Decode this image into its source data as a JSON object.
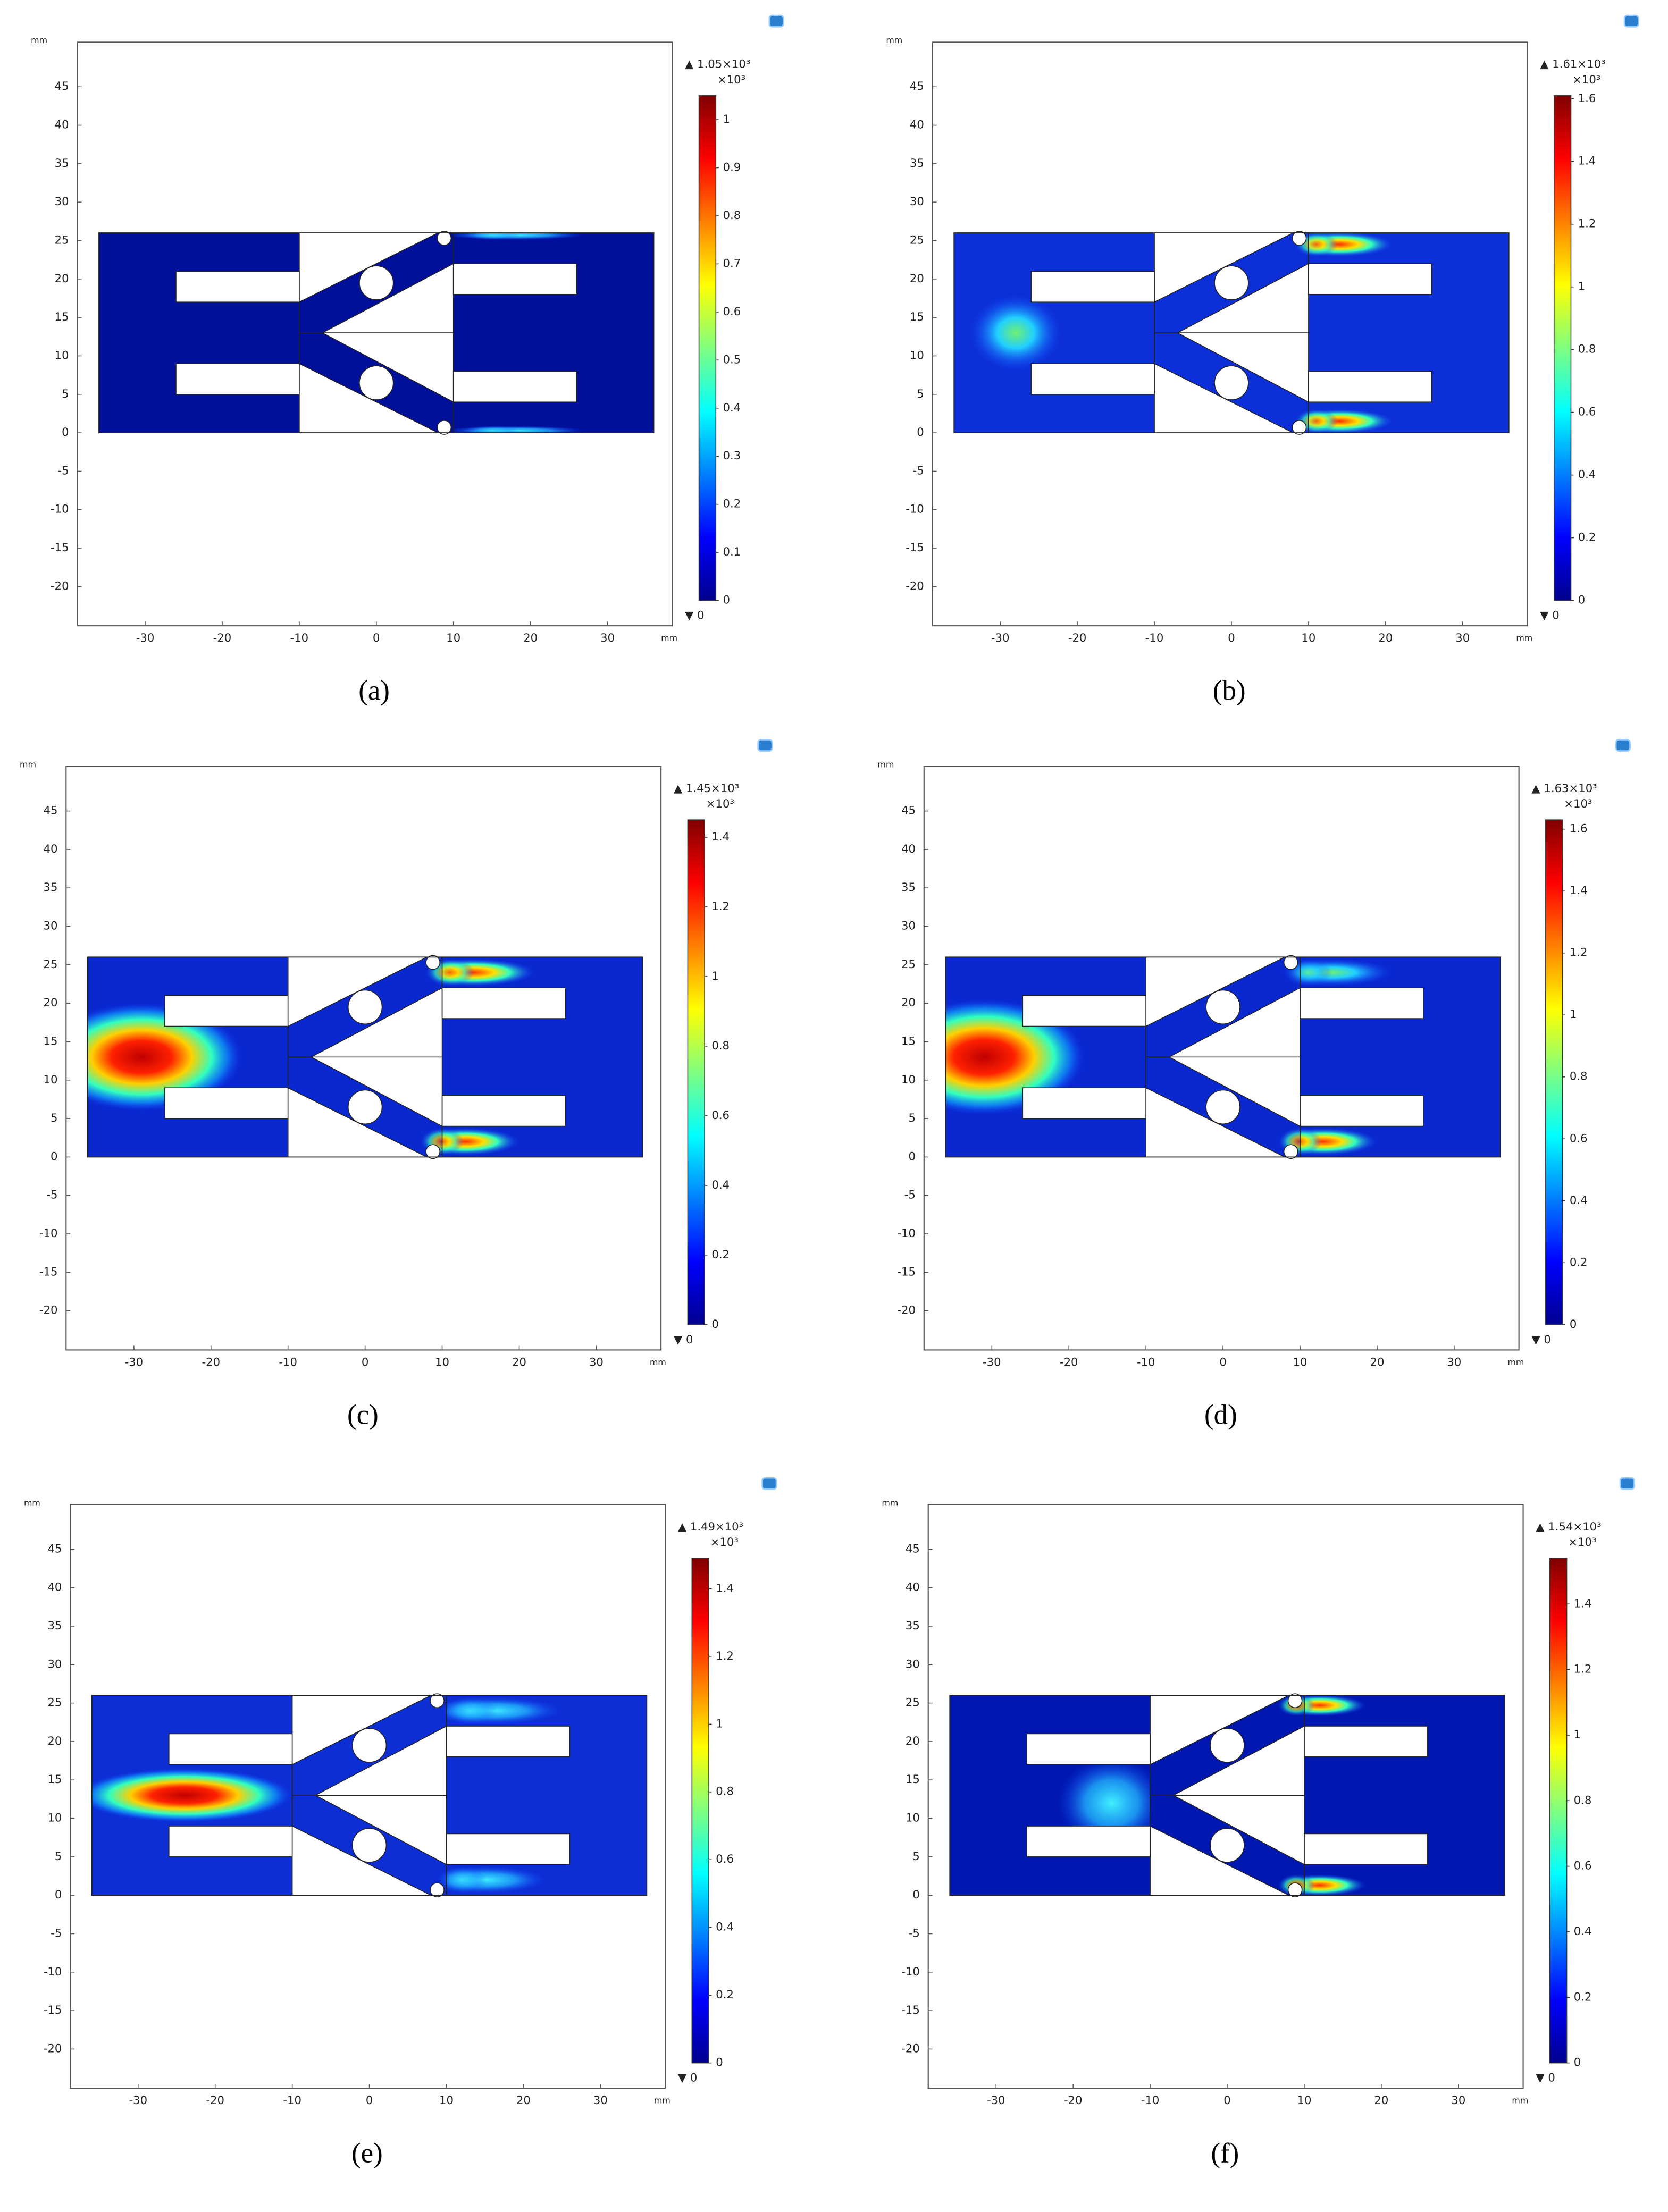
{
  "chart_data": [
    {
      "type": "heatmap",
      "label": "(a)",
      "x_unit": "mm",
      "y_unit": "mm",
      "xlim": [
        -38.8,
        38.4
      ],
      "ylim": [
        -25.1,
        50.8
      ],
      "xticks": [
        -30,
        -20,
        -10,
        0,
        10,
        20,
        30
      ],
      "yticks": [
        -20,
        -15,
        -10,
        -5,
        0,
        5,
        10,
        15,
        20,
        25,
        30,
        35,
        40,
        45
      ],
      "colorbar": {
        "max_label": "▲ 1.05×10³",
        "scale_label": "×10³",
        "min_label": "▼ 0",
        "lim": [
          0,
          1.05
        ],
        "ticks": [
          0,
          0.1,
          0.2,
          0.3,
          0.4,
          0.5,
          0.6,
          0.7,
          0.8,
          0.9,
          1
        ]
      }
    },
    {
      "type": "heatmap",
      "label": "(b)",
      "x_unit": "mm",
      "y_unit": "mm",
      "xlim": [
        -38.8,
        38.4
      ],
      "ylim": [
        -25.1,
        50.8
      ],
      "xticks": [
        -30,
        -20,
        -10,
        0,
        10,
        20,
        30
      ],
      "yticks": [
        -20,
        -15,
        -10,
        -5,
        0,
        5,
        10,
        15,
        20,
        25,
        30,
        35,
        40,
        45
      ],
      "colorbar": {
        "max_label": "▲ 1.61×10³",
        "scale_label": "×10³",
        "min_label": "▼ 0",
        "lim": [
          0,
          1.61
        ],
        "ticks": [
          0,
          0.2,
          0.4,
          0.6,
          0.8,
          1,
          1.2,
          1.4,
          1.6
        ]
      }
    },
    {
      "type": "heatmap",
      "label": "(c)",
      "x_unit": "mm",
      "y_unit": "mm",
      "xlim": [
        -38.8,
        38.4
      ],
      "ylim": [
        -25.1,
        50.8
      ],
      "xticks": [
        -30,
        -20,
        -10,
        0,
        10,
        20,
        30
      ],
      "yticks": [
        -20,
        -15,
        -10,
        -5,
        0,
        5,
        10,
        15,
        20,
        25,
        30,
        35,
        40,
        45
      ],
      "colorbar": {
        "max_label": "▲ 1.45×10³",
        "scale_label": "×10³",
        "min_label": "▼ 0",
        "lim": [
          0,
          1.45
        ],
        "ticks": [
          0,
          0.2,
          0.4,
          0.6,
          0.8,
          1,
          1.2,
          1.4
        ]
      }
    },
    {
      "type": "heatmap",
      "label": "(d)",
      "x_unit": "mm",
      "y_unit": "mm",
      "xlim": [
        -38.8,
        38.4
      ],
      "ylim": [
        -25.1,
        50.8
      ],
      "xticks": [
        -30,
        -20,
        -10,
        0,
        10,
        20,
        30
      ],
      "yticks": [
        -20,
        -15,
        -10,
        -5,
        0,
        5,
        10,
        15,
        20,
        25,
        30,
        35,
        40,
        45
      ],
      "colorbar": {
        "max_label": "▲ 1.63×10³",
        "scale_label": "×10³",
        "min_label": "▼ 0",
        "lim": [
          0,
          1.63
        ],
        "ticks": [
          0,
          0.2,
          0.4,
          0.6,
          0.8,
          1,
          1.2,
          1.4,
          1.6
        ]
      }
    },
    {
      "type": "heatmap",
      "label": "(e)",
      "x_unit": "mm",
      "y_unit": "mm",
      "xlim": [
        -38.8,
        38.4
      ],
      "ylim": [
        -25.1,
        50.8
      ],
      "xticks": [
        -30,
        -20,
        -10,
        0,
        10,
        20,
        30
      ],
      "yticks": [
        -20,
        -15,
        -10,
        -5,
        0,
        5,
        10,
        15,
        20,
        25,
        30,
        35,
        40,
        45
      ],
      "colorbar": {
        "max_label": "▲ 1.49×10³",
        "scale_label": "×10³",
        "min_label": "▼ 0",
        "lim": [
          0,
          1.49
        ],
        "ticks": [
          0,
          0.2,
          0.4,
          0.6,
          0.8,
          1,
          1.2,
          1.4
        ]
      }
    },
    {
      "type": "heatmap",
      "label": "(f)",
      "x_unit": "mm",
      "y_unit": "mm",
      "xlim": [
        -38.8,
        38.4
      ],
      "ylim": [
        -25.1,
        50.8
      ],
      "xticks": [
        -30,
        -20,
        -10,
        0,
        10,
        20,
        30
      ],
      "yticks": [
        -20,
        -15,
        -10,
        -5,
        0,
        5,
        10,
        15,
        20,
        25,
        30,
        35,
        40,
        45
      ],
      "colorbar": {
        "max_label": "▲ 1.54×10³",
        "scale_label": "×10³",
        "min_label": "▼ 0",
        "lim": [
          0,
          1.54
        ],
        "ticks": [
          0,
          0.2,
          0.4,
          0.6,
          0.8,
          1,
          1.2,
          1.4
        ]
      }
    }
  ]
}
